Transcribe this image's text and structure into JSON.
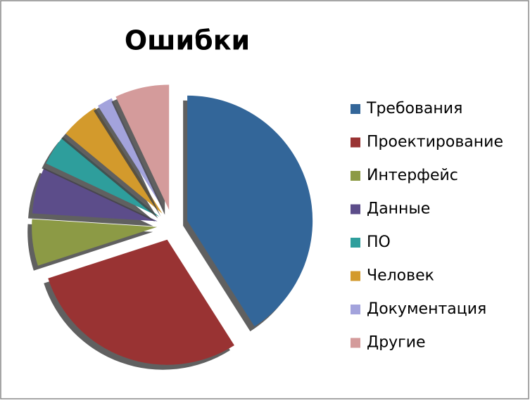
{
  "chart_data": {
    "type": "pie",
    "title": "Ошибки",
    "categories": [
      "Требования",
      "Проектирование",
      "Интерфейс",
      "Данные",
      "ПО",
      "Человек",
      "Документация",
      "Другие"
    ],
    "values": [
      41,
      29,
      6,
      6,
      4,
      5,
      2,
      7
    ],
    "colors": [
      "#336699",
      "#993333",
      "#8c9a45",
      "#5c4d8a",
      "#2e9e9c",
      "#d39a2c",
      "#a3a3dc",
      "#d49b9b"
    ],
    "legend": "right"
  }
}
